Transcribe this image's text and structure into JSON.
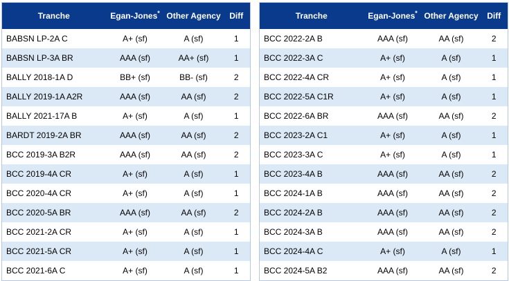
{
  "headers": {
    "tranche": "Tranche",
    "egan_jones": "Egan-Jones",
    "egan_jones_marker": "*",
    "other_agency": "Other Agency",
    "diff": "Diff"
  },
  "left_rows": [
    {
      "tranche": "BABSN LP-2A C",
      "egan": "A+ (sf)",
      "other": "A (sf)",
      "diff": "1"
    },
    {
      "tranche": "BABSN LP-3A BR",
      "egan": "AAA (sf)",
      "other": "AA+ (sf)",
      "diff": "1"
    },
    {
      "tranche": "BALLY 2018-1A D",
      "egan": "BB+ (sf)",
      "other": "BB- (sf)",
      "diff": "2"
    },
    {
      "tranche": "BALLY 2019-1A A2R",
      "egan": "AAA (sf)",
      "other": "AA (sf)",
      "diff": "2"
    },
    {
      "tranche": "BALLY 2021-17A B",
      "egan": "A+ (sf)",
      "other": "A (sf)",
      "diff": "1"
    },
    {
      "tranche": "BARDT 2019-2A BR",
      "egan": "AAA (sf)",
      "other": "AA (sf)",
      "diff": "2"
    },
    {
      "tranche": "BCC 2019-3A B2R",
      "egan": "AAA (sf)",
      "other": "AA (sf)",
      "diff": "2"
    },
    {
      "tranche": "BCC 2019-4A CR",
      "egan": "A+ (sf)",
      "other": "A (sf)",
      "diff": "1"
    },
    {
      "tranche": "BCC 2020-4A CR",
      "egan": "A+ (sf)",
      "other": "A (sf)",
      "diff": "1"
    },
    {
      "tranche": "BCC 2020-5A BR",
      "egan": "AAA (sf)",
      "other": "AA (sf)",
      "diff": "2"
    },
    {
      "tranche": "BCC 2021-2A CR",
      "egan": "A+ (sf)",
      "other": "A (sf)",
      "diff": "1"
    },
    {
      "tranche": "BCC 2021-5A CR",
      "egan": "A+ (sf)",
      "other": "A (sf)",
      "diff": "1"
    },
    {
      "tranche": "BCC 2021-6A C",
      "egan": "A+ (sf)",
      "other": "A (sf)",
      "diff": "1"
    }
  ],
  "right_rows": [
    {
      "tranche": "BCC 2022-2A B",
      "egan": "AAA (sf)",
      "other": "AA (sf)",
      "diff": "2"
    },
    {
      "tranche": "BCC 2022-3A C",
      "egan": "A+ (sf)",
      "other": "A (sf)",
      "diff": "1"
    },
    {
      "tranche": "BCC 2022-4A CR",
      "egan": "A+ (sf)",
      "other": "A (sf)",
      "diff": "1"
    },
    {
      "tranche": "BCC 2022-5A C1R",
      "egan": "A+ (sf)",
      "other": "A (sf)",
      "diff": "1"
    },
    {
      "tranche": "BCC 2022-6A BR",
      "egan": "AAA (sf)",
      "other": "AA (sf)",
      "diff": "2"
    },
    {
      "tranche": "BCC 2023-2A C1",
      "egan": "A+ (sf)",
      "other": "A (sf)",
      "diff": "1"
    },
    {
      "tranche": "BCC 2023-3A C",
      "egan": "A+ (sf)",
      "other": "A (sf)",
      "diff": "1"
    },
    {
      "tranche": "BCC 2023-4A B",
      "egan": "AAA (sf)",
      "other": "AA (sf)",
      "diff": "2"
    },
    {
      "tranche": "BCC 2024-1A B",
      "egan": "AAA (sf)",
      "other": "AA (sf)",
      "diff": "2"
    },
    {
      "tranche": "BCC 2024-2A B",
      "egan": "AAA (sf)",
      "other": "AA (sf)",
      "diff": "2"
    },
    {
      "tranche": "BCC 2024-3A B",
      "egan": "AAA (sf)",
      "other": "AA (sf)",
      "diff": "2"
    },
    {
      "tranche": "BCC 2024-4A C",
      "egan": "A+ (sf)",
      "other": "A (sf)",
      "diff": "1"
    },
    {
      "tranche": "BCC 2024-5A B2",
      "egan": "AAA (sf)",
      "other": "AA (sf)",
      "diff": "2"
    }
  ],
  "colors": {
    "header_bg": "#0a3a8c",
    "header_text": "#ffffff",
    "alt_row_bg": "#dbe8f5",
    "row_bg": "#ffffff"
  }
}
